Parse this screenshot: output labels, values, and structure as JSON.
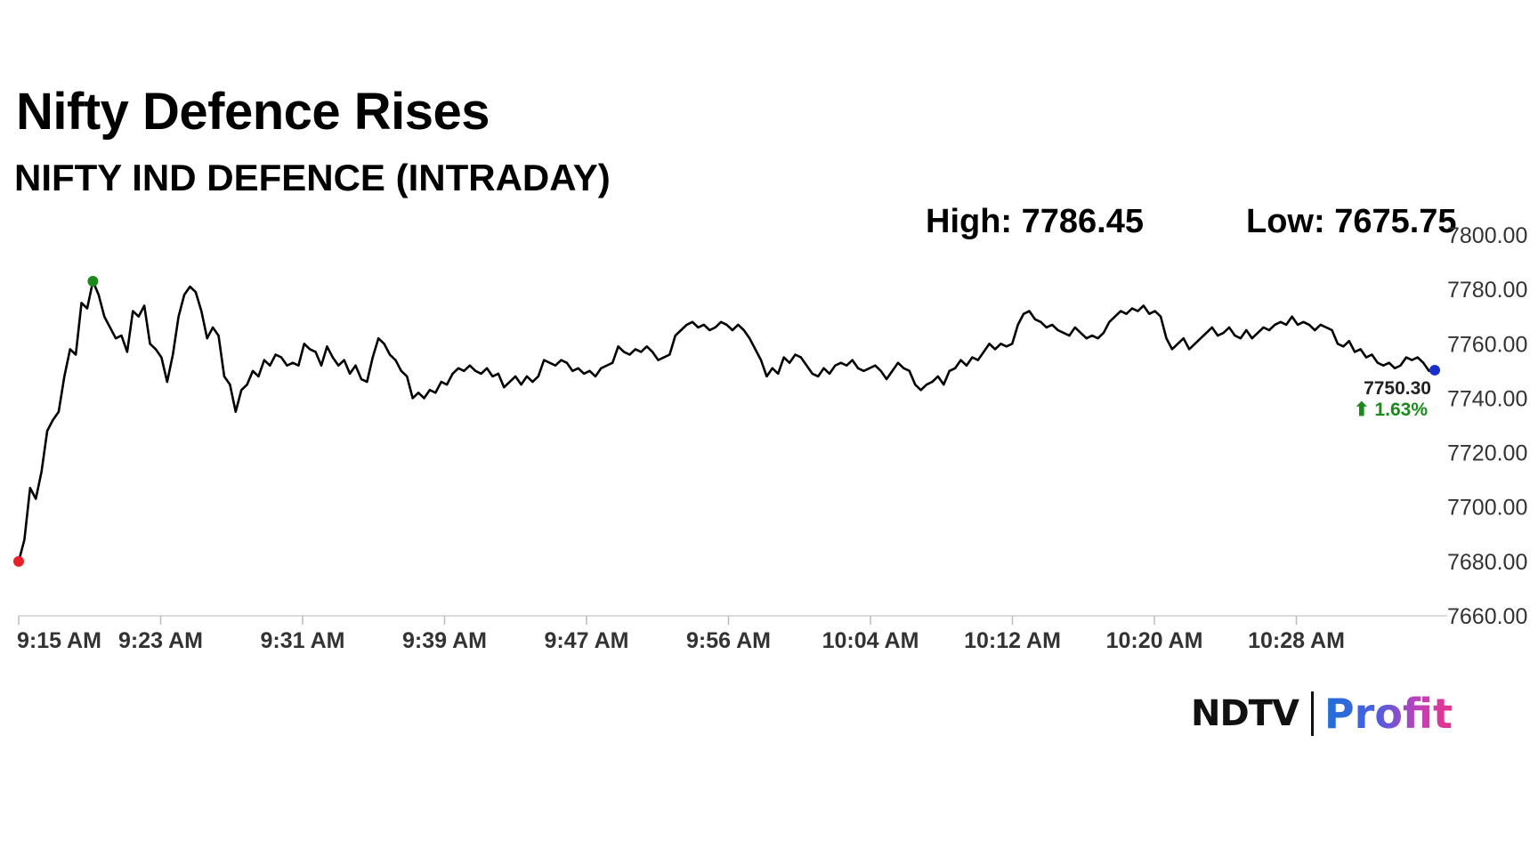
{
  "header": {
    "title": "Nifty Defence Rises",
    "subtitle": "NIFTY IND DEFENCE (INTRADAY)",
    "high_text": "High: 7786.45",
    "low_text": "Low: 7675.75"
  },
  "brand": {
    "ndtv": "NDTV",
    "profit": "Profit"
  },
  "colors": {
    "line": "#000000",
    "open_marker": "#e8202a",
    "high_marker": "#1b8a1b",
    "last_marker": "#1a2fc9",
    "change_up": "#1b8a1b"
  },
  "chart_data": {
    "type": "line",
    "title": "NIFTY IND DEFENCE (INTRADAY)",
    "xlabel": "",
    "ylabel": "",
    "ylim": [
      7660,
      7800
    ],
    "yticks": [
      7660,
      7680,
      7700,
      7720,
      7740,
      7760,
      7780,
      7800
    ],
    "ytick_labels": [
      "7660.00",
      "7680.00",
      "7700.00",
      "7720.00",
      "7740.00",
      "7760.00",
      "7780.00",
      "7800.00"
    ],
    "xtick_labels": [
      "9:15 AM",
      "9:23 AM",
      "9:31 AM",
      "9:39 AM",
      "9:47 AM",
      "9:56 AM",
      "10:04 AM",
      "10:12 AM",
      "10:20 AM",
      "10:28 AM"
    ],
    "grid": false,
    "last_value_label": "7750.30",
    "change_label": "⬆ 1.63%",
    "series": [
      {
        "values": [
          7680,
          7688,
          7707,
          7703,
          7713,
          7728,
          7732,
          7735,
          7748,
          7758,
          7756,
          7775,
          7773,
          7783,
          7778,
          7770,
          7766,
          7762,
          7763,
          7757,
          7772,
          7770,
          7774,
          7760,
          7758,
          7755,
          7746,
          7756,
          7770,
          7778,
          7781,
          7779,
          7772,
          7762,
          7766,
          7763,
          7748,
          7745,
          7735,
          7743,
          7745,
          7750,
          7748,
          7754,
          7752,
          7756,
          7755,
          7752,
          7753,
          7752,
          7760,
          7758,
          7757,
          7752,
          7759,
          7755,
          7752,
          7754,
          7749,
          7752,
          7747,
          7746,
          7755,
          7762,
          7760,
          7756,
          7754,
          7750,
          7748,
          7740,
          7742,
          7740,
          7743,
          7742,
          7746,
          7745,
          7749,
          7751,
          7750,
          7752,
          7750,
          7749,
          7751,
          7748,
          7749,
          7744,
          7746,
          7748,
          7745,
          7748,
          7746,
          7748,
          7754,
          7753,
          7752,
          7754,
          7753,
          7750,
          7751,
          7749,
          7750,
          7748,
          7751,
          7752,
          7753,
          7759,
          7757,
          7756,
          7758,
          7757,
          7759,
          7757,
          7754,
          7755,
          7756,
          7763,
          7765,
          7767,
          7768,
          7766,
          7767,
          7765,
          7766,
          7768,
          7767,
          7765,
          7767,
          7765,
          7762,
          7758,
          7754,
          7748,
          7751,
          7749,
          7755,
          7753,
          7756,
          7755,
          7752,
          7749,
          7748,
          7751,
          7749,
          7752,
          7753,
          7752,
          7754,
          7751,
          7750,
          7751,
          7752,
          7750,
          7747,
          7750,
          7753,
          7751,
          7750,
          7745,
          7743,
          7745,
          7746,
          7748,
          7745,
          7750,
          7751,
          7754,
          7752,
          7755,
          7754,
          7757,
          7760,
          7758,
          7760,
          7759,
          7760,
          7767,
          7771,
          7772,
          7769,
          7768,
          7766,
          7767,
          7765,
          7764,
          7763,
          7766,
          7764,
          7762,
          7763,
          7762,
          7764,
          7768,
          7770,
          7772,
          7771,
          7773,
          7772,
          7774,
          7771,
          7772,
          7770,
          7762,
          7758,
          7760,
          7762,
          7758,
          7760,
          7762,
          7764,
          7766,
          7763,
          7764,
          7766,
          7763,
          7762,
          7765,
          7762,
          7764,
          7766,
          7765,
          7767,
          7768,
          7767,
          7770,
          7767,
          7768,
          7767,
          7765,
          7767,
          7766,
          7765,
          7760,
          7759,
          7761,
          7757,
          7758,
          7755,
          7756,
          7753,
          7752,
          7753,
          7751,
          7752,
          7755,
          7754,
          7755,
          7753,
          7750,
          7750.3
        ]
      }
    ],
    "open": 7679.5,
    "high": 7786.45,
    "low": 7675.75,
    "last": 7750.3
  }
}
